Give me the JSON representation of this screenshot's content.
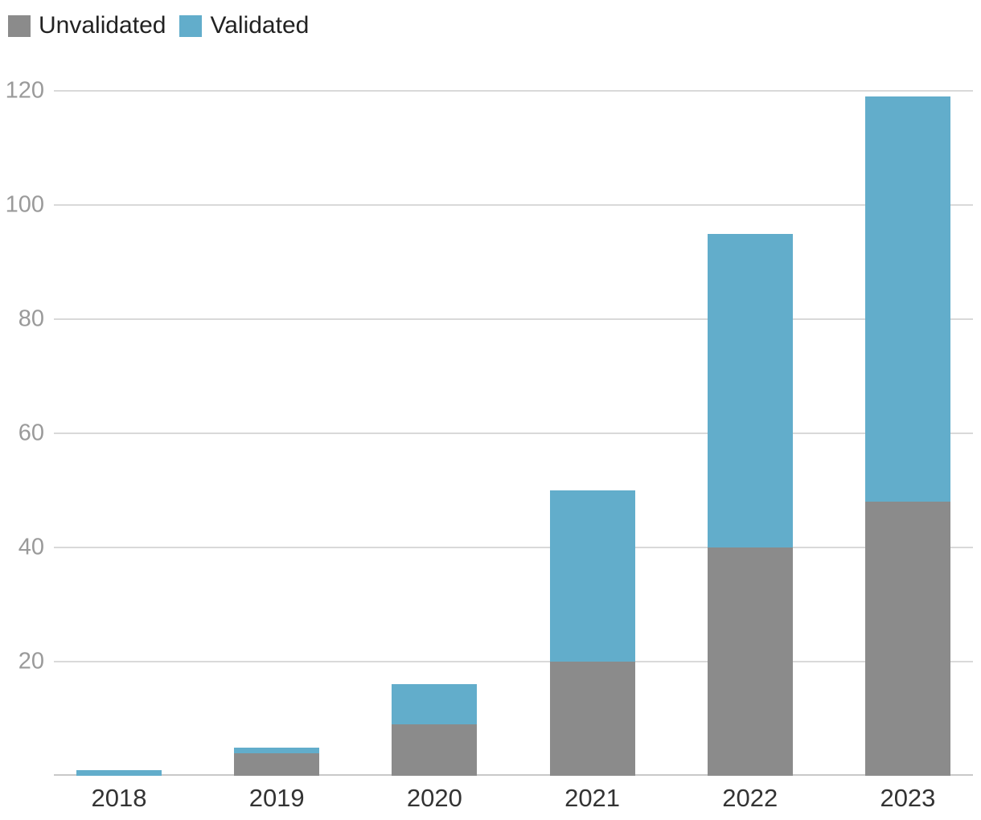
{
  "legend": {
    "items": [
      {
        "label": "Unvalidated",
        "color": "#8b8b8b"
      },
      {
        "label": "Validated",
        "color": "#62adcb"
      }
    ]
  },
  "chart_data": {
    "type": "bar",
    "stacked": true,
    "categories": [
      "2018",
      "2019",
      "2020",
      "2021",
      "2022",
      "2023"
    ],
    "series": [
      {
        "name": "Unvalidated",
        "color": "#8b8b8b",
        "values": [
          0,
          4,
          9,
          20,
          40,
          48
        ]
      },
      {
        "name": "Validated",
        "color": "#62adcb",
        "values": [
          1,
          1,
          7,
          30,
          55,
          71
        ]
      }
    ],
    "stack_totals": [
      1,
      5,
      16,
      50,
      95,
      119
    ],
    "title": "",
    "xlabel": "",
    "ylabel": "",
    "ylim": [
      0,
      120
    ],
    "yticks": [
      20,
      40,
      60,
      80,
      100,
      120
    ],
    "grid": true,
    "legend_position": "top-left"
  },
  "colors": {
    "unvalidated": "#8b8b8b",
    "validated": "#62adcb",
    "gridline": "#d9d9d9",
    "axis_line": "#c9c9c9",
    "y_tick_label": "#9a9a9a",
    "x_tick_label": "#333333",
    "legend_text": "#222222",
    "background": "#ffffff"
  }
}
